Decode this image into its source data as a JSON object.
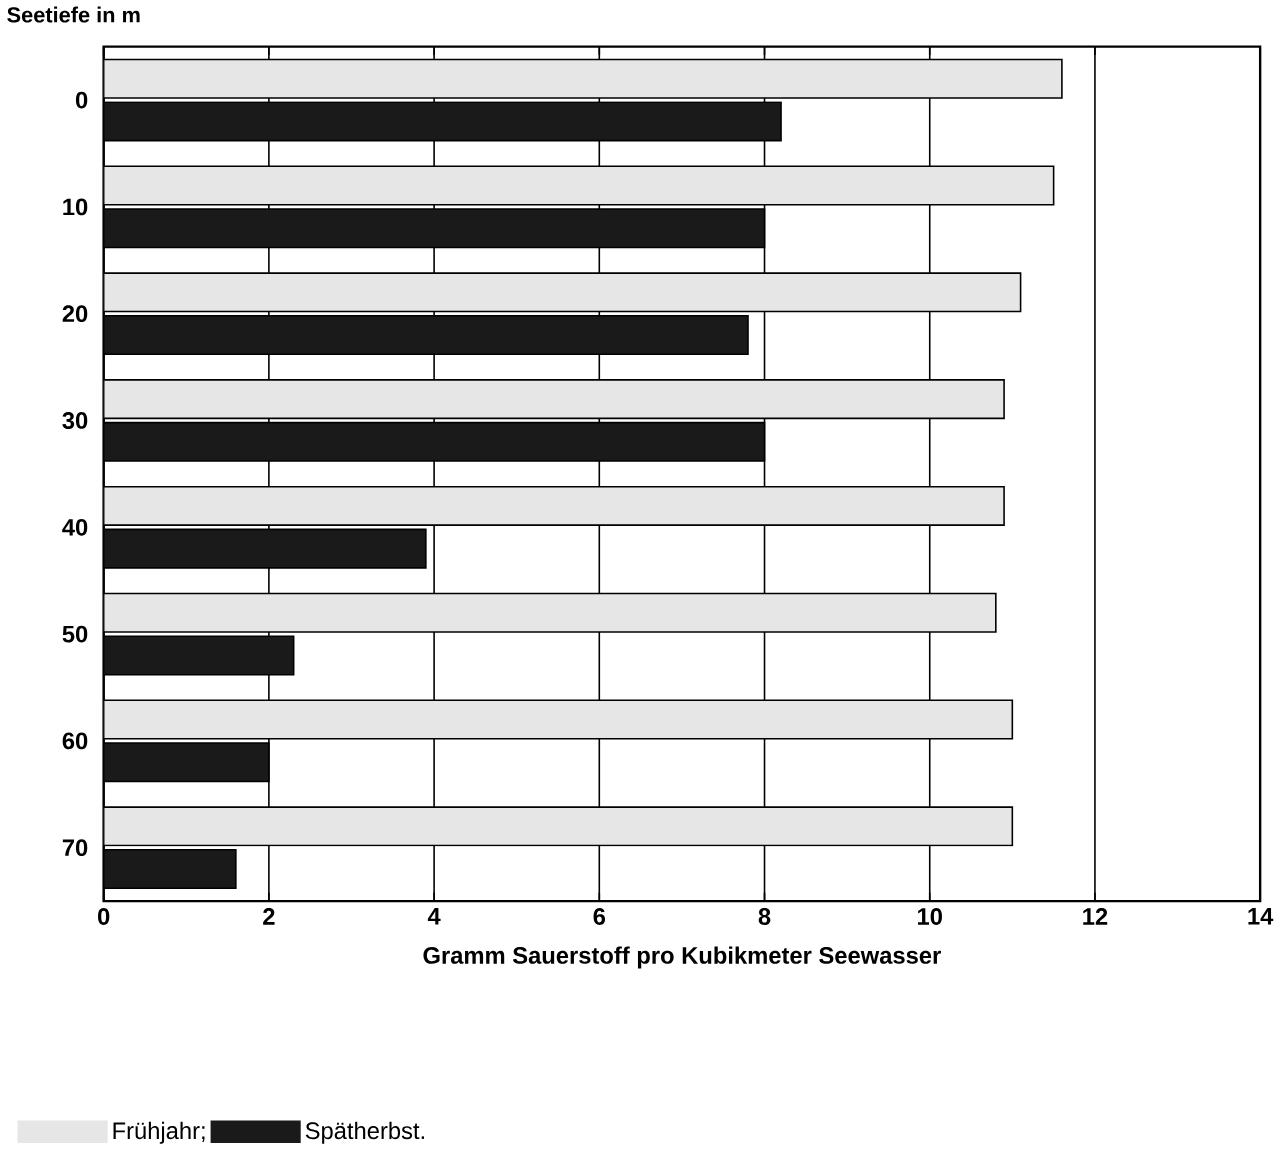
{
  "chart_data": {
    "type": "bar",
    "orientation": "horizontal",
    "ylabel": "Seetiefe in m",
    "xlabel": "Gramm Sauerstoff pro Kubikmeter Seewasser",
    "categories": [
      "0",
      "10",
      "20",
      "30",
      "40",
      "50",
      "60",
      "70"
    ],
    "series": [
      {
        "name": "Frühjahr;",
        "color": "#e6e6e6",
        "values": [
          11.6,
          11.5,
          11.1,
          10.9,
          10.9,
          10.8,
          11.0,
          11.0
        ]
      },
      {
        "name": "Spätherbst.",
        "color": "#1a1a1a",
        "values": [
          8.2,
          8.0,
          7.8,
          8.0,
          3.9,
          2.3,
          2.0,
          1.6
        ]
      }
    ],
    "xlim": [
      0,
      14
    ],
    "xticks": [
      0,
      2,
      4,
      6,
      8,
      10,
      12,
      14
    ],
    "grid": "x",
    "legend": "bottom"
  }
}
